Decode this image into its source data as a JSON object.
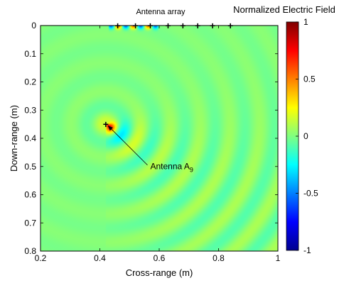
{
  "chart_data": {
    "type": "heatmap",
    "title": "Normalized Electric Field",
    "xlabel": "Cross-range (m)",
    "ylabel": "Down-range (m)",
    "xlim": [
      0.2,
      1.0
    ],
    "ylim": [
      0.8,
      0.0
    ],
    "y_axis_inverted": true,
    "xticks": [
      "0.2",
      "0.4",
      "0.6",
      "0.8",
      "1"
    ],
    "yticks": [
      "0",
      "0.1",
      "0.2",
      "0.3",
      "0.4",
      "0.5",
      "0.6",
      "0.7",
      "0.8"
    ],
    "colorbar": {
      "range": [
        -1,
        1
      ],
      "ticks": [
        "1",
        "0.5",
        "0",
        "-0.5",
        "-1"
      ],
      "colormap": "jet"
    },
    "field_source": {
      "x": 0.42,
      "y": 0.35
    },
    "array_label": "Antenna array",
    "array_elements_x": [
      0.46,
      0.52,
      0.57,
      0.63,
      0.68,
      0.73,
      0.78,
      0.84
    ],
    "annotation": {
      "text": "Antenna A",
      "subscript": "9",
      "target": {
        "x": 0.42,
        "y": 0.35
      },
      "text_anchor": {
        "x": 0.57,
        "y": 0.51
      }
    }
  },
  "colors": {
    "high": "#800000",
    "mid": "#80ff80",
    "low": "#000080",
    "marker": "#000000"
  }
}
